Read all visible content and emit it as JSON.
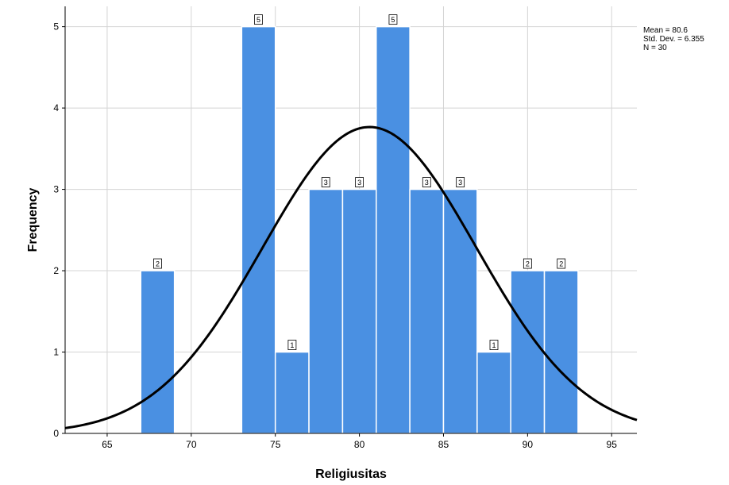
{
  "chart_data": {
    "type": "bar",
    "xlabel": "Religiusitas",
    "ylabel": "Frequency",
    "xlim": [
      62.5,
      96.5
    ],
    "ylim": [
      0,
      5.25
    ],
    "x_ticks": [
      65,
      70,
      75,
      80,
      85,
      90,
      95
    ],
    "y_ticks": [
      0,
      1,
      2,
      3,
      4,
      5
    ],
    "grid": true,
    "bin_width": 2,
    "bins": [
      {
        "start": 67,
        "end": 69,
        "count": 2
      },
      {
        "start": 73,
        "end": 75,
        "count": 5
      },
      {
        "start": 75,
        "end": 77,
        "count": 1
      },
      {
        "start": 77,
        "end": 79,
        "count": 3
      },
      {
        "start": 79,
        "end": 81,
        "count": 3
      },
      {
        "start": 81,
        "end": 83,
        "count": 5
      },
      {
        "start": 83,
        "end": 85,
        "count": 3
      },
      {
        "start": 85,
        "end": 87,
        "count": 3
      },
      {
        "start": 87,
        "end": 89,
        "count": 1
      },
      {
        "start": 89,
        "end": 91,
        "count": 2
      },
      {
        "start": 91,
        "end": 93,
        "count": 2
      }
    ],
    "normal_curve": {
      "mean": 80.6,
      "std_dev": 6.355,
      "n": 30
    },
    "stats_labels": [
      "Mean = 80.6",
      "Std. Dev. = 6.355",
      "N = 30"
    ],
    "colors": {
      "bar": "#4a90e2",
      "curve": "#000000",
      "grid": "#d4d4d4",
      "bar_edge": "#ffffff"
    }
  }
}
